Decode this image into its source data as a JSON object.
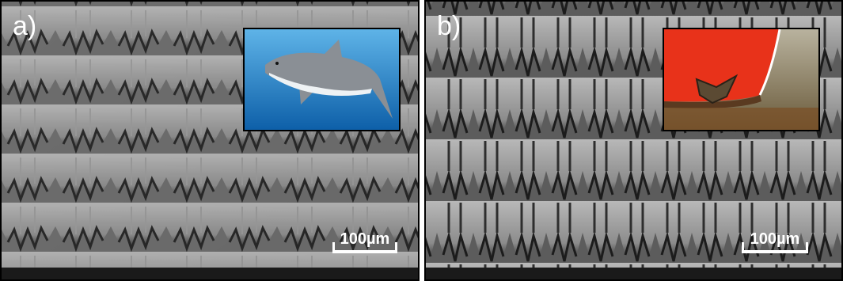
{
  "panels": [
    {
      "label": "a)",
      "scale_bar": "100µm"
    },
    {
      "label": "b)",
      "scale_bar": "100µm"
    }
  ]
}
